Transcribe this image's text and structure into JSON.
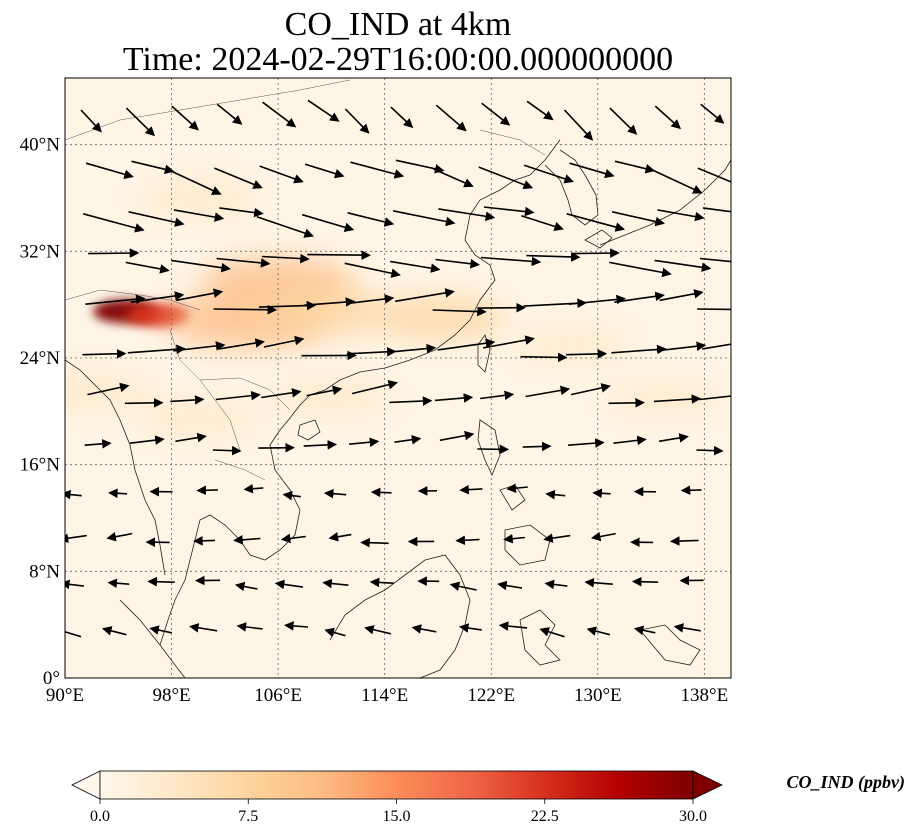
{
  "title": {
    "line1": "CO_IND at 4km",
    "line2": "Time: 2024-02-29T16:00:00.000000000"
  },
  "map": {
    "lon_range": [
      90,
      140
    ],
    "lat_range": [
      0,
      45
    ],
    "lon_ticks": [
      {
        "value": 90,
        "label": "90°E"
      },
      {
        "value": 98,
        "label": "98°E"
      },
      {
        "value": 106,
        "label": "106°E"
      },
      {
        "value": 114,
        "label": "114°E"
      },
      {
        "value": 122,
        "label": "122°E"
      },
      {
        "value": 130,
        "label": "130°E"
      },
      {
        "value": 138,
        "label": "138°E"
      }
    ],
    "lat_ticks": [
      {
        "value": 0,
        "label": "0°"
      },
      {
        "value": 8,
        "label": "8°N"
      },
      {
        "value": 16,
        "label": "16°N"
      },
      {
        "value": 24,
        "label": "24°N"
      },
      {
        "value": 32,
        "label": "32°N"
      },
      {
        "value": 40,
        "label": "40°N"
      }
    ],
    "gridlines": true,
    "coastlines": true
  },
  "colorbar": {
    "label": "CO_IND (ppbv)",
    "colormap": "OrRd",
    "range": [
      0,
      30
    ],
    "extend": "both",
    "ticks": [
      {
        "value": 0,
        "label": "0.0"
      },
      {
        "value": 7.5,
        "label": "7.5"
      },
      {
        "value": 15,
        "label": "15.0"
      },
      {
        "value": 22.5,
        "label": "22.5"
      },
      {
        "value": 30,
        "label": "30.0"
      }
    ],
    "colors": [
      "#fff7ec",
      "#fee8c8",
      "#fdd49e",
      "#fdbb84",
      "#fc8d59",
      "#ef6548",
      "#d7301f",
      "#b30000",
      "#7f0000"
    ]
  },
  "field": {
    "plumes": [
      {
        "lon": 94.5,
        "lat": 27.5,
        "value": 30
      },
      {
        "lon": 97.0,
        "lat": 27.2,
        "value": 24
      },
      {
        "lon": 103.5,
        "lat": 26.8,
        "value": 12
      },
      {
        "lon": 106.0,
        "lat": 29.5,
        "value": 11
      },
      {
        "lon": 109.0,
        "lat": 27.5,
        "value": 9
      },
      {
        "lon": 100.0,
        "lat": 36.0,
        "value": 4
      },
      {
        "lon": 118.0,
        "lat": 27.0,
        "value": 6
      },
      {
        "lon": 92.0,
        "lat": 21.5,
        "value": 5
      },
      {
        "lon": 100.0,
        "lat": 19.5,
        "value": 4
      },
      {
        "lon": 110.0,
        "lat": 21.0,
        "value": 4
      },
      {
        "lon": 128.0,
        "lat": 25.0,
        "value": 3
      },
      {
        "lon": 135.0,
        "lat": 21.0,
        "value": 2
      }
    ]
  },
  "wind": {
    "rows": [
      {
        "lat": 43.0,
        "dir_deg": -40,
        "speed": 0.6
      },
      {
        "lat": 38.5,
        "dir_deg": -18,
        "speed": 0.9
      },
      {
        "lat": 35.0,
        "dir_deg": -12,
        "speed": 1.0
      },
      {
        "lat": 31.5,
        "dir_deg": -5,
        "speed": 1.0
      },
      {
        "lat": 28.0,
        "dir_deg": 5,
        "speed": 1.0
      },
      {
        "lat": 24.5,
        "dir_deg": 6,
        "speed": 0.9
      },
      {
        "lat": 21.0,
        "dir_deg": 8,
        "speed": 0.7
      },
      {
        "lat": 17.5,
        "dir_deg": 5,
        "speed": 0.5
      },
      {
        "lat": 14.0,
        "dir_deg": 180,
        "speed": 0.25
      },
      {
        "lat": 10.5,
        "dir_deg": 185,
        "speed": 0.35
      },
      {
        "lat": 7.0,
        "dir_deg": 175,
        "speed": 0.35
      },
      {
        "lat": 3.5,
        "dir_deg": 170,
        "speed": 0.35
      }
    ]
  }
}
